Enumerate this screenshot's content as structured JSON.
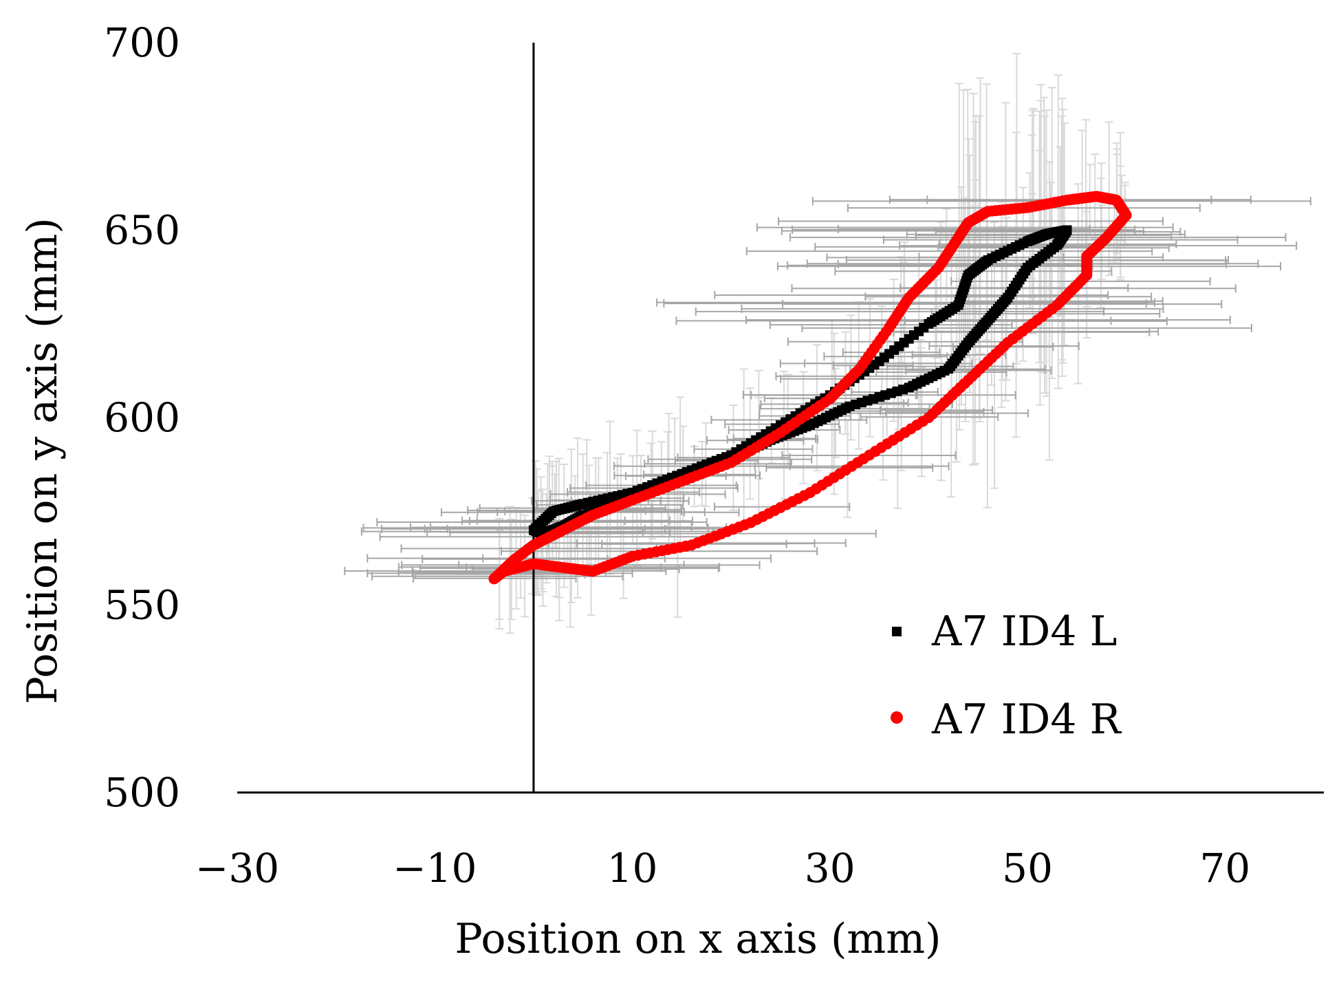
{
  "chart_data": {
    "type": "scatter",
    "title": "",
    "xlabel": "Position on x axis (mm)",
    "ylabel": "Position on y axis (mm)",
    "xlim": [
      -30,
      80
    ],
    "ylim": [
      500,
      700
    ],
    "xticks": [
      "−30",
      "−10",
      "10",
      "30",
      "50",
      "70"
    ],
    "xtick_values": [
      -30,
      -10,
      10,
      30,
      50,
      70
    ],
    "yticks": [
      "500",
      "550",
      "600",
      "650",
      "700"
    ],
    "ytick_values": [
      500,
      550,
      600,
      650,
      700
    ],
    "grid": false,
    "legend_position": "bottom-right",
    "colors": {
      "left": "#000000",
      "right": "#ff0000",
      "x_error": "#a6a6a6",
      "y_error": "#d9d9d9"
    },
    "series": [
      {
        "name": "A7 ID4 L",
        "color": "#000000",
        "x": [
          0,
          2,
          5,
          10,
          15,
          20,
          25,
          30,
          35,
          40,
          43,
          44,
          46,
          50,
          52,
          54,
          53,
          50,
          48,
          46,
          44,
          42,
          38,
          32,
          28,
          24,
          20,
          15,
          10,
          5,
          3,
          2,
          1,
          0
        ],
        "y": [
          570,
          575,
          577,
          580,
          585,
          590,
          598,
          606,
          615,
          625,
          630,
          638,
          642,
          647,
          649,
          650,
          646,
          640,
          632,
          626,
          620,
          613,
          608,
          603,
          598,
          594,
          589,
          584,
          579,
          574,
          571,
          570,
          569,
          570
        ]
      },
      {
        "name": "A7 ID4 R",
        "color": "#ff0000",
        "x": [
          -4,
          -2,
          0,
          3,
          6,
          10,
          15,
          20,
          25,
          30,
          33,
          36,
          38,
          41,
          43,
          44,
          46,
          50,
          54,
          57,
          59,
          60,
          58,
          56,
          56,
          53,
          48,
          44,
          40,
          34,
          28,
          22,
          16,
          10,
          6,
          3,
          0,
          -3,
          -4
        ],
        "y": [
          557,
          562,
          566,
          570,
          574,
          578,
          583,
          588,
          596,
          605,
          613,
          624,
          632,
          640,
          648,
          652,
          655,
          656,
          658,
          659,
          658,
          654,
          648,
          643,
          638,
          630,
          620,
          610,
          600,
          590,
          580,
          572,
          566,
          563,
          559,
          560,
          561,
          559,
          557
        ]
      }
    ]
  }
}
